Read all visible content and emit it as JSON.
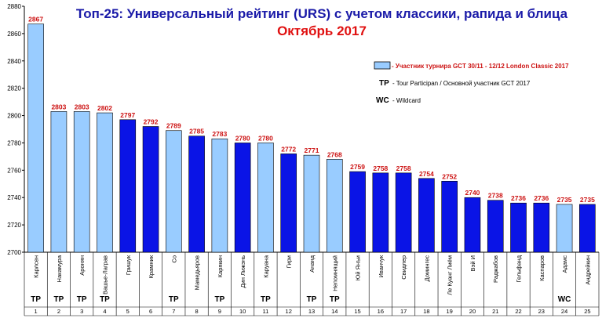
{
  "chart_data": {
    "type": "bar",
    "title": "Топ-25: Универсальный рейтинг (URS) с учетом классики, рапида и блица",
    "subtitle": "Октябрь 2017",
    "ylim": [
      2700,
      2880
    ],
    "y_ticks": [
      2700,
      2720,
      2740,
      2760,
      2780,
      2800,
      2820,
      2840,
      2860,
      2880
    ],
    "grid": false,
    "legend_position": "top-right",
    "colors": {
      "tournament": "#99ccff",
      "other": "#0a14e6",
      "value_label": "#cc1111",
      "title_line1": "#1a1aa8",
      "title_line2": "#e01010"
    },
    "categories": [
      "Карлсен",
      "Накамура",
      "Аронян",
      "Вашье-Лаграв",
      "Гришук",
      "Крамник",
      "Со",
      "Мамедьяров",
      "Карякин",
      "Дин Лижэнь",
      "Каруана",
      "Гири",
      "Ананд",
      "Непомнящий",
      "Юй Янъи",
      "Иванчук",
      "Свидлер",
      "Домингес",
      "Ле Куанг Лиём",
      "Вэй И",
      "Раджабов",
      "Гельфанд",
      "Каспаров",
      "Адамс",
      "Андрейкин"
    ],
    "values": [
      2867,
      2803,
      2803,
      2802,
      2797,
      2792,
      2789,
      2785,
      2783,
      2780,
      2780,
      2772,
      2771,
      2768,
      2759,
      2758,
      2758,
      2754,
      2752,
      2740,
      2738,
      2736,
      2736,
      2735,
      2735
    ],
    "in_tournament": [
      true,
      true,
      true,
      true,
      false,
      false,
      true,
      false,
      true,
      false,
      true,
      false,
      true,
      true,
      false,
      false,
      false,
      false,
      false,
      false,
      false,
      false,
      false,
      true,
      false
    ],
    "tags": [
      "TP",
      "TP",
      "TP",
      "TP",
      "",
      "",
      "TP",
      "",
      "TP",
      "",
      "TP",
      "",
      "TP",
      "TP",
      "",
      "",
      "",
      "",
      "",
      "",
      "",
      "",
      "",
      "WC",
      ""
    ],
    "ranks": [
      "1",
      "2",
      "3",
      "4",
      "5",
      "6",
      "7",
      "8",
      "9",
      "10",
      "11",
      "12",
      "13",
      "14",
      "15",
      "16",
      "17",
      "18",
      "19",
      "20",
      "21",
      "22",
      "23",
      "24",
      "25"
    ],
    "legend": {
      "swatch_label": "- Участник турнира GCT 30/11 - 12/12 London Classic 2017",
      "tp_key": "TP",
      "tp_label": "- Tour Participan / Основной участник GCT 2017",
      "wc_key": "WC",
      "wc_label": "- Wildcard"
    }
  }
}
